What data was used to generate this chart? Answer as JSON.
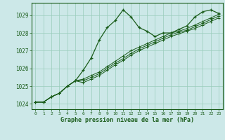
{
  "title": "Graphe pression niveau de la mer (hPa)",
  "bg_color": "#cce8e8",
  "grid_color": "#99ccbb",
  "line_color": "#1a5c1a",
  "xlim": [
    -0.5,
    23.5
  ],
  "ylim": [
    1023.7,
    1029.7
  ],
  "yticks": [
    1024,
    1025,
    1026,
    1027,
    1028,
    1029
  ],
  "xticks": [
    0,
    1,
    2,
    3,
    4,
    5,
    6,
    7,
    8,
    9,
    10,
    11,
    12,
    13,
    14,
    15,
    16,
    17,
    18,
    19,
    20,
    21,
    22,
    23
  ],
  "series": [
    [
      1024.1,
      1024.1,
      1024.4,
      1024.6,
      1025.0,
      1025.3,
      1025.9,
      1026.6,
      1027.6,
      1028.3,
      1028.7,
      1029.3,
      1028.9,
      1028.3,
      1028.1,
      1027.8,
      1028.0,
      1028.0,
      1028.2,
      1028.4,
      1028.9,
      1029.2,
      1029.3,
      1029.1
    ],
    [
      1024.1,
      1024.1,
      1024.4,
      1024.6,
      1025.0,
      1025.3,
      1025.4,
      1025.6,
      1025.8,
      1026.1,
      1026.4,
      1026.7,
      1027.0,
      1027.2,
      1027.4,
      1027.6,
      1027.8,
      1028.0,
      1028.1,
      1028.25,
      1028.45,
      1028.65,
      1028.85,
      1029.05
    ],
    [
      1024.1,
      1024.1,
      1024.4,
      1024.6,
      1025.0,
      1025.3,
      1025.3,
      1025.5,
      1025.7,
      1026.0,
      1026.3,
      1026.55,
      1026.85,
      1027.1,
      1027.3,
      1027.5,
      1027.7,
      1027.9,
      1028.05,
      1028.15,
      1028.35,
      1028.55,
      1028.75,
      1028.95
    ],
    [
      1024.1,
      1024.1,
      1024.4,
      1024.6,
      1025.0,
      1025.3,
      1025.2,
      1025.4,
      1025.6,
      1025.9,
      1026.2,
      1026.45,
      1026.75,
      1027.0,
      1027.2,
      1027.4,
      1027.6,
      1027.8,
      1027.95,
      1028.1,
      1028.25,
      1028.45,
      1028.65,
      1028.85
    ]
  ]
}
